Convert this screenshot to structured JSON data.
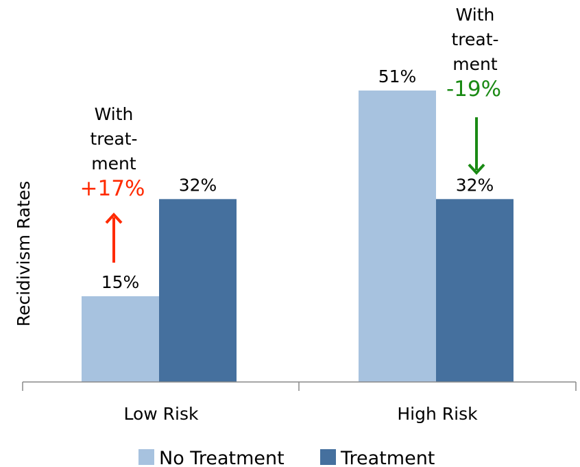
{
  "chart_data": {
    "type": "bar",
    "title": "",
    "ylabel": "Recidivism Rates",
    "xlabel": "",
    "categories": [
      "Low Risk",
      "High Risk"
    ],
    "ylim": [
      0,
      60
    ],
    "grid": false,
    "legend_position": "bottom",
    "series": [
      {
        "name": "No Treatment",
        "values": [
          15,
          51
        ],
        "labels": [
          "15%",
          "51%"
        ],
        "color": "#a7c2df"
      },
      {
        "name": "Treatment",
        "values": [
          32,
          32
        ],
        "labels": [
          "32%",
          "32%"
        ],
        "color": "#45709e"
      }
    ],
    "annotations": [
      {
        "category": "Low Risk",
        "text_lines": [
          "With",
          "treat-",
          "ment"
        ],
        "change": "+17%",
        "direction": "up",
        "color": "#ff2a00"
      },
      {
        "category": "High Risk",
        "text_lines": [
          "With",
          "treat-",
          "ment"
        ],
        "change": "-19%",
        "direction": "down",
        "color": "#1a8a14"
      }
    ]
  }
}
